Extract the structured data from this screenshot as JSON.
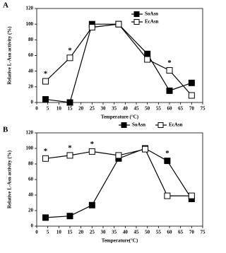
{
  "chart_data": [
    {
      "type": "line",
      "panel": "A",
      "ylabel": "Relative L-Asn activity (%)",
      "xlabel": "Temperature (°C)",
      "xlim": [
        0,
        75
      ],
      "xticks": [
        0,
        5,
        10,
        15,
        20,
        25,
        30,
        35,
        40,
        45,
        50,
        55,
        60,
        65,
        70,
        75
      ],
      "ylim": [
        0,
        120
      ],
      "yticks": [
        0,
        20,
        40,
        60,
        80,
        100,
        120
      ],
      "legend": "top-right",
      "series": [
        {
          "name": "SoAsn",
          "color": "#000000",
          "marker": "filled-square",
          "x": [
            4,
            15,
            25,
            37,
            50,
            60,
            70
          ],
          "values": [
            4,
            0,
            100,
            100,
            62,
            15,
            25
          ]
        },
        {
          "name": "EcAsn",
          "color": "#000000",
          "marker": "open-square",
          "x": [
            4,
            15,
            25,
            37,
            50,
            60,
            70
          ],
          "values": [
            27,
            57,
            96,
            100,
            55,
            41,
            9
          ]
        }
      ],
      "annotations": [
        {
          "text": "*",
          "x": 4
        },
        {
          "text": "*",
          "x": 15
        },
        {
          "text": "*",
          "x": 60
        }
      ]
    },
    {
      "type": "line",
      "panel": "B",
      "ylabel": "Relative L-Asn activity (%)",
      "xlabel": "Temperature(°C)",
      "xlim": [
        0,
        75
      ],
      "xticks": [
        0,
        5,
        10,
        15,
        20,
        25,
        30,
        35,
        40,
        45,
        50,
        55,
        60,
        65,
        70,
        75
      ],
      "ylim": [
        0,
        120
      ],
      "yticks": [
        0,
        20,
        40,
        60,
        80,
        100,
        120
      ],
      "legend": "top",
      "series": [
        {
          "name": "SoAsn",
          "color": "#000000",
          "marker": "filled-square",
          "x": [
            4,
            15,
            25,
            37,
            49,
            59,
            70
          ],
          "values": [
            11,
            13,
            27,
            87,
            100,
            84,
            35
          ]
        },
        {
          "name": "EcAsn",
          "color": "#000000",
          "marker": "open-square",
          "x": [
            4,
            15,
            25,
            37,
            49,
            59,
            70
          ],
          "values": [
            87,
            91,
            96,
            91,
            99,
            39,
            39
          ]
        }
      ],
      "annotations": [
        {
          "text": "*",
          "x": 4
        },
        {
          "text": "*",
          "x": 15
        },
        {
          "text": "*",
          "x": 25
        },
        {
          "text": "*",
          "x": 59
        }
      ]
    }
  ]
}
